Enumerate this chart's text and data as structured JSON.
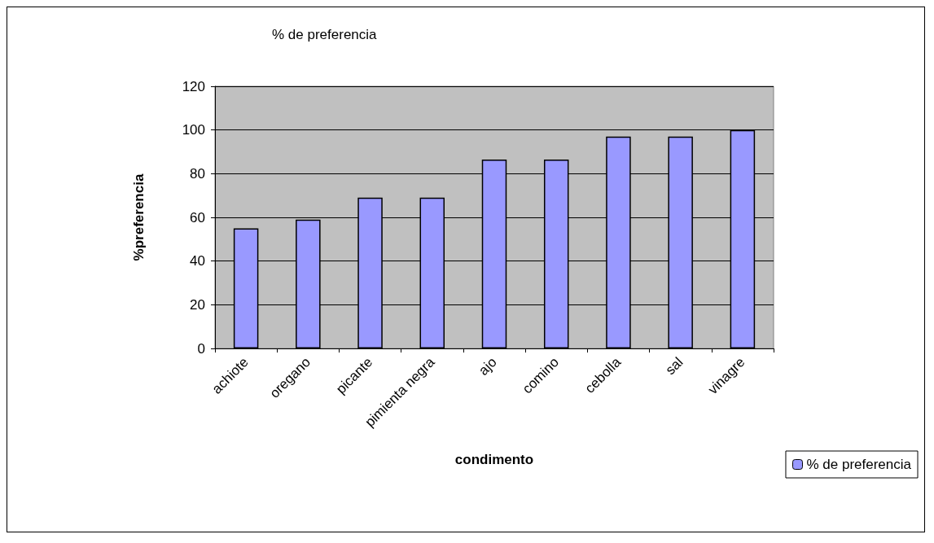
{
  "chart_data": {
    "type": "bar",
    "title": "% de preferencia",
    "xlabel": "condimento",
    "ylabel": "%preferencia",
    "categories": [
      "achiote",
      "oregano",
      "picante",
      "pimienta negra",
      "ajo",
      "comino",
      "cebolla",
      "sal",
      "vinagre"
    ],
    "series": [
      {
        "name": "% de preferencia",
        "color": "#9999ff",
        "values": [
          55,
          59,
          69,
          69,
          86.5,
          86.5,
          97,
          97,
          100
        ]
      }
    ],
    "ylim": [
      0,
      120
    ],
    "yticks": [
      0,
      20,
      40,
      60,
      80,
      100,
      120
    ],
    "grid": "y",
    "legend": "right"
  }
}
